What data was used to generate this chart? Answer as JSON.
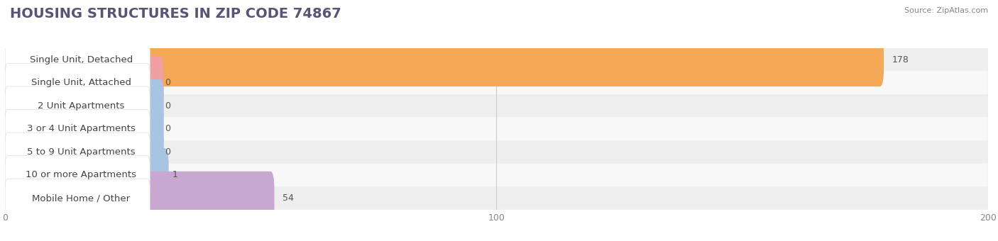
{
  "title": "HOUSING STRUCTURES IN ZIP CODE 74867",
  "source": "Source: ZipAtlas.com",
  "categories": [
    "Single Unit, Detached",
    "Single Unit, Attached",
    "2 Unit Apartments",
    "3 or 4 Unit Apartments",
    "5 to 9 Unit Apartments",
    "10 or more Apartments",
    "Mobile Home / Other"
  ],
  "values": [
    178,
    0,
    0,
    0,
    0,
    1,
    54
  ],
  "bar_colors": [
    "#f5a855",
    "#f0a0a0",
    "#a8c4e0",
    "#a8c4e0",
    "#a8c4e0",
    "#a8c4e0",
    "#c8a8d0"
  ],
  "row_bg_colors": [
    "#eeeeee",
    "#f8f8f8",
    "#eeeeee",
    "#f8f8f8",
    "#eeeeee",
    "#f8f8f8",
    "#eeeeee"
  ],
  "xlim": [
    0,
    200
  ],
  "xticks": [
    0,
    100,
    200
  ],
  "background_color": "#ffffff",
  "title_fontsize": 14,
  "label_fontsize": 9.5,
  "value_fontsize": 9,
  "bar_height": 0.72,
  "figsize": [
    14.06,
    3.4
  ],
  "dpi": 100
}
